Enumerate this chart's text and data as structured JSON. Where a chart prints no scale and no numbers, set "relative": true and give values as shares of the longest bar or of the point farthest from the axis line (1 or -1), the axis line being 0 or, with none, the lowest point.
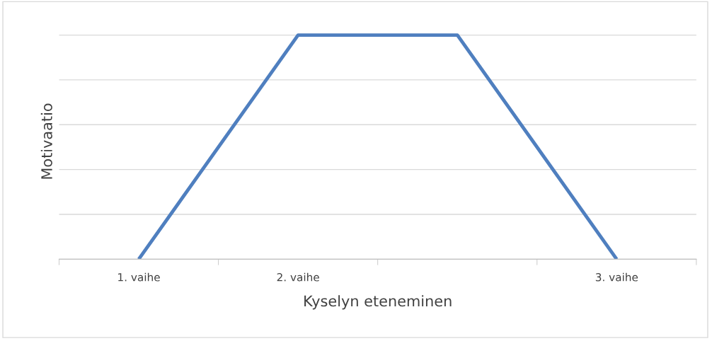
{
  "chart_data": {
    "type": "line",
    "xlabel": "Kyselyn eteneminen",
    "ylabel": "Motivaatio",
    "categories": [
      "1. vaihe",
      "2. vaihe",
      null,
      "3. vaihe"
    ],
    "series": [
      {
        "color": "#4f7fbf",
        "values": [
          0,
          1,
          1,
          0
        ]
      }
    ],
    "relative": true,
    "grid": "y",
    "marker": "none",
    "line_style": "solid"
  }
}
